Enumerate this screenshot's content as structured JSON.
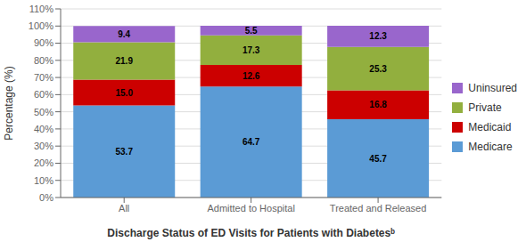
{
  "chart_data": {
    "type": "bar",
    "stacked": true,
    "data_labels": true,
    "grid": true,
    "legend": "right",
    "xlabel": "Discharge Status of ED Visits for Patients with Diabetesᵇ",
    "ylabel": "Percentage (%)",
    "categories": [
      "All",
      "Admitted to Hospital",
      "Treated and Released"
    ],
    "series": [
      {
        "name": "Medicare",
        "color": "#5B9BD5",
        "values": [
          53.7,
          64.7,
          45.7
        ]
      },
      {
        "name": "Medicaid",
        "color": "#CC0000",
        "values": [
          15.0,
          12.6,
          16.8
        ],
        "value_labels": [
          "15.0",
          "12.6",
          "16.8"
        ]
      },
      {
        "name": "Private",
        "color": "#92AF3E",
        "values": [
          21.9,
          17.3,
          25.3
        ]
      },
      {
        "name": "Uninsured",
        "color": "#9966CC",
        "values": [
          9.4,
          5.5,
          12.3
        ]
      }
    ],
    "ylim": [
      0,
      110
    ],
    "yticks": [
      {
        "value": 0,
        "label": "0%"
      },
      {
        "value": 10,
        "label": "10%"
      },
      {
        "value": 20,
        "label": "20%"
      },
      {
        "value": 30,
        "label": "30%"
      },
      {
        "value": 40,
        "label": "40%"
      },
      {
        "value": 50,
        "label": "50%"
      },
      {
        "value": 60,
        "label": "60%"
      },
      {
        "value": 70,
        "label": "70%"
      },
      {
        "value": 80,
        "label": "80%"
      },
      {
        "value": 90,
        "label": "90%"
      },
      {
        "value": 100,
        "label": "100%"
      },
      {
        "value": 110,
        "label": "110%"
      }
    ]
  }
}
